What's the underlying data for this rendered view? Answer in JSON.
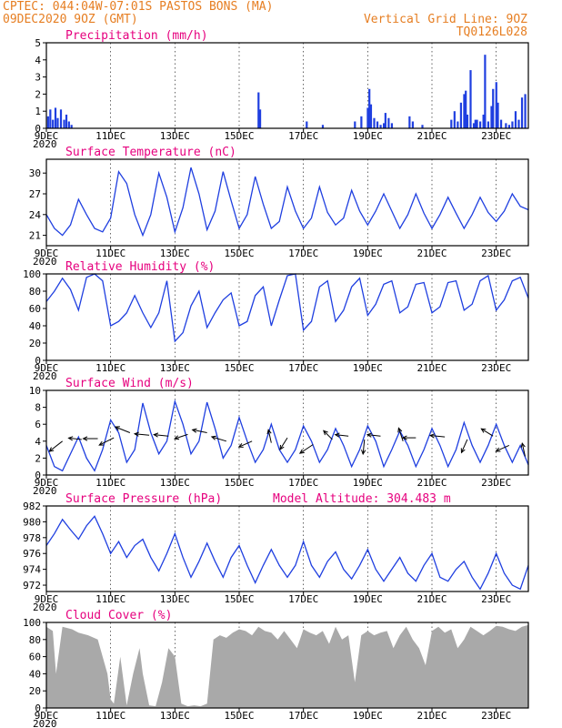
{
  "header": {
    "line1": "CPTEC:   044:04W-07:01S   PASTOS BONS (MA)",
    "line2_left": "09DEC2020 9OZ (GMT)",
    "line2_right": "Vertical Grid Line: 9OZ",
    "line3_right": "TQ0126L028"
  },
  "x_ticks": [
    "9DEC",
    "11DEC",
    "13DEC",
    "15DEC",
    "17DEC",
    "19DEC",
    "21DEC",
    "23DEC"
  ],
  "x_tick_days": [
    0,
    2,
    4,
    6,
    8,
    10,
    12,
    14
  ],
  "year_stub": "2020",
  "colors": {
    "header": "#e67e22",
    "title": "#e6007e",
    "series": "#1f3fe0",
    "cloud": "#a9a9a9",
    "wind_arrow": "#000000"
  },
  "chart_data": [
    {
      "id": "precip",
      "type": "bar",
      "title": "Precipitation (mm/h)",
      "ylim": [
        0,
        5
      ],
      "yticks": [
        "0",
        "1",
        "2",
        "3",
        "4",
        "5"
      ],
      "x_unit": "days since 09DEC2020 09Z",
      "x": [
        0.05,
        0.12,
        0.2,
        0.28,
        0.35,
        0.45,
        0.55,
        0.62,
        0.7,
        0.78,
        6.6,
        6.65,
        8.1,
        8.6,
        9.6,
        9.8,
        10.0,
        10.05,
        10.1,
        10.2,
        10.3,
        10.4,
        10.5,
        10.55,
        10.65,
        10.75,
        11.3,
        11.4,
        11.7,
        12.6,
        12.7,
        12.8,
        12.9,
        13.0,
        13.05,
        13.1,
        13.2,
        13.3,
        13.35,
        13.4,
        13.5,
        13.6,
        13.65,
        13.75,
        13.85,
        13.9,
        14.0,
        14.05,
        14.15,
        14.3,
        14.4,
        14.5,
        14.6,
        14.7,
        14.8,
        14.9
      ],
      "values": [
        0.7,
        1.1,
        0.5,
        1.2,
        0.6,
        1.1,
        0.5,
        0.8,
        0.4,
        0.2,
        2.1,
        1.1,
        0.4,
        0.2,
        0.4,
        0.7,
        1.2,
        2.3,
        1.4,
        0.6,
        0.4,
        0.2,
        0.3,
        0.9,
        0.6,
        0.3,
        0.7,
        0.4,
        0.2,
        0.5,
        1.0,
        0.4,
        1.5,
        2.0,
        2.2,
        0.8,
        3.4,
        0.3,
        0.5,
        0.5,
        0.4,
        0.8,
        4.3,
        0.4,
        1.3,
        2.3,
        2.7,
        1.5,
        0.5,
        0.3,
        0.2,
        0.4,
        1.0,
        0.5,
        1.8,
        2.0
      ]
    },
    {
      "id": "temp",
      "type": "line",
      "title": "Surface Temperature (nC)",
      "ylim": [
        19.5,
        32.0
      ],
      "yticks": [
        "21",
        "24",
        "27",
        "30"
      ],
      "ytick_values": [
        21,
        24,
        27,
        30
      ],
      "x_unit": "days since 09DEC2020 09Z",
      "x": [
        0,
        0.25,
        0.5,
        0.75,
        1.0,
        1.25,
        1.5,
        1.75,
        2.0,
        2.25,
        2.5,
        2.75,
        3.0,
        3.25,
        3.5,
        3.75,
        4.0,
        4.25,
        4.5,
        4.75,
        5.0,
        5.25,
        5.5,
        5.75,
        6.0,
        6.25,
        6.5,
        6.75,
        7.0,
        7.25,
        7.5,
        7.75,
        8.0,
        8.25,
        8.5,
        8.75,
        9.0,
        9.25,
        9.5,
        9.75,
        10.0,
        10.25,
        10.5,
        10.75,
        11.0,
        11.25,
        11.5,
        11.75,
        12.0,
        12.25,
        12.5,
        12.75,
        13.0,
        13.25,
        13.5,
        13.75,
        14.0,
        14.25,
        14.5,
        14.75,
        15.0
      ],
      "values": [
        24.0,
        22.0,
        21.0,
        22.5,
        26.2,
        24.0,
        22.0,
        21.5,
        23.5,
        30.2,
        28.5,
        24.0,
        21.0,
        24.0,
        30.0,
        26.5,
        21.5,
        25.0,
        30.8,
        27.0,
        21.8,
        24.5,
        30.2,
        26.0,
        22.0,
        24.0,
        29.5,
        25.5,
        22.0,
        23.0,
        28.0,
        24.5,
        22.0,
        23.5,
        28.0,
        24.3,
        22.5,
        23.5,
        27.5,
        24.5,
        22.5,
        24.5,
        27.0,
        24.5,
        22.0,
        24.0,
        27.0,
        24.2,
        22.0,
        24.0,
        26.5,
        24.2,
        22.0,
        24.0,
        26.5,
        24.3,
        23.0,
        24.5,
        27.0,
        25.2,
        24.7
      ]
    },
    {
      "id": "rh",
      "type": "line",
      "title": "Relative Humidity (%)",
      "ylim": [
        0,
        100
      ],
      "yticks": [
        "0",
        "20",
        "40",
        "60",
        "80",
        "100"
      ],
      "ytick_values": [
        0,
        20,
        40,
        60,
        80,
        100
      ],
      "x_unit": "days since 09DEC2020 09Z",
      "x": [
        0,
        0.25,
        0.5,
        0.75,
        1.0,
        1.25,
        1.5,
        1.75,
        2.0,
        2.25,
        2.5,
        2.75,
        3.0,
        3.25,
        3.5,
        3.75,
        4.0,
        4.25,
        4.5,
        4.75,
        5.0,
        5.25,
        5.5,
        5.75,
        6.0,
        6.25,
        6.5,
        6.75,
        7.0,
        7.25,
        7.5,
        7.75,
        8.0,
        8.25,
        8.5,
        8.75,
        9.0,
        9.25,
        9.5,
        9.75,
        10.0,
        10.25,
        10.5,
        10.75,
        11.0,
        11.25,
        11.5,
        11.75,
        12.0,
        12.25,
        12.5,
        12.75,
        13.0,
        13.25,
        13.5,
        13.75,
        14.0,
        14.25,
        14.5,
        14.75,
        15.0
      ],
      "values": [
        68,
        80,
        95,
        82,
        58,
        96,
        100,
        92,
        40,
        45,
        55,
        75,
        55,
        38,
        55,
        92,
        22,
        32,
        63,
        80,
        38,
        55,
        70,
        78,
        40,
        45,
        75,
        85,
        40,
        70,
        98,
        100,
        35,
        45,
        85,
        92,
        45,
        58,
        85,
        95,
        52,
        65,
        88,
        92,
        55,
        62,
        88,
        90,
        55,
        62,
        90,
        92,
        58,
        65,
        92,
        98,
        58,
        70,
        92,
        96,
        72
      ]
    },
    {
      "id": "wind",
      "type": "line",
      "title": "Surface Wind (m/s)",
      "ylim": [
        0,
        10
      ],
      "yticks": [
        "0",
        "2",
        "4",
        "6",
        "8",
        "10"
      ],
      "ytick_values": [
        0,
        2,
        4,
        6,
        8,
        10
      ],
      "x_unit": "days since 09DEC2020 09Z",
      "x": [
        0,
        0.25,
        0.5,
        0.75,
        1.0,
        1.25,
        1.5,
        1.75,
        2.0,
        2.25,
        2.5,
        2.75,
        3.0,
        3.25,
        3.5,
        3.75,
        4.0,
        4.25,
        4.5,
        4.75,
        5.0,
        5.25,
        5.5,
        5.75,
        6.0,
        6.25,
        6.5,
        6.75,
        7.0,
        7.25,
        7.5,
        7.75,
        8.0,
        8.25,
        8.5,
        8.75,
        9.0,
        9.25,
        9.5,
        9.75,
        10.0,
        10.25,
        10.5,
        10.75,
        11.0,
        11.25,
        11.5,
        11.75,
        12.0,
        12.25,
        12.5,
        12.75,
        13.0,
        13.25,
        13.5,
        13.75,
        14.0,
        14.25,
        14.5,
        14.75,
        15.0
      ],
      "values": [
        3.5,
        1.0,
        0.5,
        2.5,
        4.5,
        2.0,
        0.5,
        3.0,
        6.5,
        5.0,
        1.5,
        3.0,
        8.5,
        5.0,
        2.5,
        4.0,
        8.7,
        6.0,
        2.5,
        4.0,
        8.6,
        5.5,
        2.0,
        3.5,
        6.8,
        4.0,
        1.5,
        3.0,
        6.0,
        3.0,
        1.5,
        3.0,
        5.8,
        4.0,
        1.5,
        3.0,
        5.5,
        3.5,
        1.0,
        3.0,
        5.8,
        4.0,
        1.0,
        3.0,
        5.2,
        3.5,
        1.0,
        3.0,
        5.5,
        3.5,
        1.0,
        3.0,
        6.2,
        3.5,
        1.5,
        3.5,
        6.0,
        3.5,
        1.5,
        3.5,
        1.2
      ],
      "arrows": [
        {
          "x": 0.5,
          "y": 4.0,
          "u": -0.9,
          "v": -0.7
        },
        {
          "x": 1.1,
          "y": 4.2,
          "u": -0.9,
          "v": 0.1
        },
        {
          "x": 1.6,
          "y": 4.3,
          "u": -1.0,
          "v": 0.0
        },
        {
          "x": 2.1,
          "y": 4.4,
          "u": -1.0,
          "v": -0.5
        },
        {
          "x": 2.6,
          "y": 5.0,
          "u": -1.0,
          "v": 0.4
        },
        {
          "x": 3.2,
          "y": 4.7,
          "u": -1.0,
          "v": 0.1
        },
        {
          "x": 3.8,
          "y": 4.6,
          "u": -1.0,
          "v": 0.1
        },
        {
          "x": 4.4,
          "y": 4.8,
          "u": -0.9,
          "v": -0.3
        },
        {
          "x": 5.0,
          "y": 5.0,
          "u": -1.0,
          "v": 0.2
        },
        {
          "x": 5.6,
          "y": 4.0,
          "u": -1.0,
          "v": 0.3
        },
        {
          "x": 6.4,
          "y": 4.0,
          "u": -0.9,
          "v": -0.4
        },
        {
          "x": 7.0,
          "y": 3.8,
          "u": -0.2,
          "v": 0.9
        },
        {
          "x": 7.5,
          "y": 4.4,
          "u": -0.5,
          "v": -0.8
        },
        {
          "x": 8.3,
          "y": 3.6,
          "u": -0.9,
          "v": -0.6
        },
        {
          "x": 8.9,
          "y": 4.2,
          "u": -0.6,
          "v": 0.6
        },
        {
          "x": 9.4,
          "y": 4.6,
          "u": -0.9,
          "v": 0.1
        },
        {
          "x": 9.9,
          "y": 4.2,
          "u": -0.1,
          "v": -1.0
        },
        {
          "x": 10.4,
          "y": 4.6,
          "u": -0.9,
          "v": 0.1
        },
        {
          "x": 11.1,
          "y": 4.0,
          "u": -0.3,
          "v": 0.9
        },
        {
          "x": 11.5,
          "y": 4.4,
          "u": -0.9,
          "v": 0.0
        },
        {
          "x": 12.4,
          "y": 4.5,
          "u": -1.0,
          "v": 0.1
        },
        {
          "x": 13.1,
          "y": 4.2,
          "u": -0.4,
          "v": -0.9
        },
        {
          "x": 13.9,
          "y": 4.6,
          "u": -0.8,
          "v": 0.5
        },
        {
          "x": 14.4,
          "y": 3.5,
          "u": -0.9,
          "v": -0.4
        },
        {
          "x": 14.9,
          "y": 2.2,
          "u": -0.2,
          "v": 0.9
        }
      ]
    },
    {
      "id": "pressure",
      "type": "line",
      "title": "Surface Pressure (hPa)",
      "annotation": "Model Altitude: 304.483 m",
      "ylim": [
        971.2,
        982
      ],
      "yticks": [
        "972",
        "974",
        "976",
        "978",
        "980",
        "982"
      ],
      "ytick_values": [
        972,
        974,
        976,
        978,
        980,
        982
      ],
      "x_unit": "days since 09DEC2020 09Z",
      "x": [
        0,
        0.25,
        0.5,
        0.75,
        1.0,
        1.25,
        1.5,
        1.75,
        2.0,
        2.25,
        2.5,
        2.75,
        3.0,
        3.25,
        3.5,
        3.75,
        4.0,
        4.25,
        4.5,
        4.75,
        5.0,
        5.25,
        5.5,
        5.75,
        6.0,
        6.25,
        6.5,
        6.75,
        7.0,
        7.25,
        7.5,
        7.75,
        8.0,
        8.25,
        8.5,
        8.75,
        9.0,
        9.25,
        9.5,
        9.75,
        10.0,
        10.25,
        10.5,
        10.75,
        11.0,
        11.25,
        11.5,
        11.75,
        12.0,
        12.25,
        12.5,
        12.75,
        13.0,
        13.25,
        13.5,
        13.75,
        14.0,
        14.25,
        14.5,
        14.75,
        15.0
      ],
      "values": [
        977.0,
        978.5,
        980.3,
        979.0,
        977.8,
        979.5,
        980.7,
        978.5,
        976.0,
        977.5,
        975.5,
        977.0,
        977.8,
        975.5,
        973.8,
        976.0,
        978.5,
        975.5,
        973.0,
        975.0,
        977.3,
        975.0,
        973.0,
        975.5,
        977.0,
        974.5,
        972.3,
        974.5,
        976.5,
        974.5,
        973.0,
        974.5,
        977.5,
        974.5,
        973.0,
        975.0,
        976.2,
        974.0,
        972.8,
        974.5,
        976.5,
        974.0,
        972.5,
        974.0,
        975.5,
        973.5,
        972.5,
        974.5,
        976.0,
        973.0,
        972.5,
        974.0,
        975.0,
        973.0,
        971.5,
        973.5,
        976.0,
        973.5,
        972.0,
        971.5,
        974.5
      ]
    },
    {
      "id": "cloud",
      "type": "area",
      "title": "Cloud Cover (%)",
      "ylim": [
        0,
        100
      ],
      "yticks": [
        "0",
        "20",
        "40",
        "60",
        "80",
        "100"
      ],
      "ytick_values": [
        0,
        20,
        40,
        60,
        80,
        100
      ],
      "x_unit": "days since 09DEC2020 09Z",
      "x": [
        0,
        0.2,
        0.3,
        0.5,
        0.8,
        1.0,
        1.3,
        1.6,
        1.9,
        2.0,
        2.1,
        2.3,
        2.5,
        2.7,
        2.9,
        3.0,
        3.2,
        3.4,
        3.6,
        3.8,
        4.0,
        4.2,
        4.4,
        4.6,
        4.8,
        5.0,
        5.2,
        5.4,
        5.6,
        5.8,
        6.0,
        6.2,
        6.4,
        6.6,
        6.8,
        7.0,
        7.2,
        7.4,
        7.6,
        7.8,
        8.0,
        8.2,
        8.4,
        8.6,
        8.8,
        9.0,
        9.2,
        9.4,
        9.6,
        9.8,
        10.0,
        10.2,
        10.4,
        10.6,
        10.8,
        11.0,
        11.2,
        11.4,
        11.6,
        11.8,
        12.0,
        12.2,
        12.4,
        12.6,
        12.8,
        13.0,
        13.2,
        13.4,
        13.6,
        13.8,
        14.0,
        14.2,
        14.4,
        14.6,
        14.8,
        15.0
      ],
      "values": [
        95,
        90,
        40,
        95,
        92,
        88,
        85,
        80,
        40,
        10,
        5,
        60,
        3,
        40,
        70,
        40,
        3,
        2,
        30,
        70,
        60,
        5,
        2,
        3,
        2,
        5,
        80,
        85,
        82,
        88,
        92,
        90,
        85,
        95,
        90,
        88,
        80,
        90,
        80,
        70,
        92,
        88,
        85,
        90,
        75,
        95,
        80,
        85,
        30,
        85,
        90,
        85,
        88,
        90,
        70,
        85,
        95,
        80,
        70,
        50,
        90,
        95,
        88,
        92,
        70,
        80,
        95,
        90,
        85,
        90,
        96,
        95,
        92,
        90,
        95,
        97
      ]
    }
  ]
}
